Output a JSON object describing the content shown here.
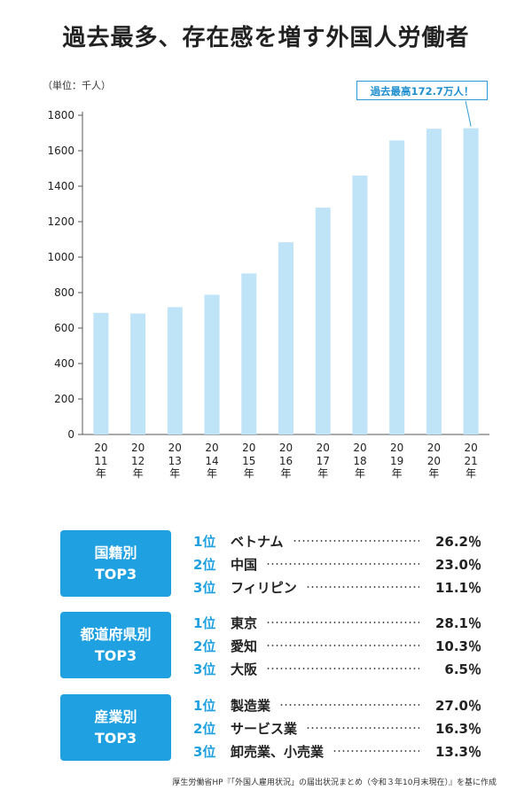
{
  "title": "過去最多、存在感を増す外国人労働者",
  "unit_label": "（単位：千人）",
  "callout": "過去最高172.7万人！",
  "colors": {
    "bar": "#bfe3f7",
    "accent": "#1fa0e0",
    "axis": "#555555"
  },
  "chart_data": {
    "type": "bar",
    "title": "過去最多、存在感を増す外国人労働者",
    "ylabel": "（単位：千人）",
    "xlabel": "",
    "categories": [
      "2011年",
      "2012年",
      "2013年",
      "2014年",
      "2015年",
      "2016年",
      "2017年",
      "2018年",
      "2019年",
      "2020年",
      "2021年"
    ],
    "values": [
      686,
      682,
      718,
      788,
      908,
      1084,
      1279,
      1460,
      1658,
      1724,
      1727
    ],
    "ylim": [
      0,
      1800
    ],
    "yticks": [
      0,
      200,
      400,
      600,
      800,
      1000,
      1200,
      1400,
      1600,
      1800
    ],
    "grid": false
  },
  "rankings": [
    {
      "title": "国籍別",
      "subtitle": "TOP3",
      "items": [
        {
          "rank": "1位",
          "name": "ベトナム",
          "value": "26.2％"
        },
        {
          "rank": "2位",
          "name": "中国",
          "value": "23.0％"
        },
        {
          "rank": "3位",
          "name": "フィリピン",
          "value": "11.1％"
        }
      ]
    },
    {
      "title": "都道府県別",
      "subtitle": "TOP3",
      "items": [
        {
          "rank": "1位",
          "name": "東京",
          "value": "28.1％"
        },
        {
          "rank": "2位",
          "name": "愛知",
          "value": "10.3％"
        },
        {
          "rank": "3位",
          "name": "大阪",
          "value": "6.5％"
        }
      ]
    },
    {
      "title": "産業別",
      "subtitle": "TOP3",
      "items": [
        {
          "rank": "1位",
          "name": "製造業",
          "value": "27.0％"
        },
        {
          "rank": "2位",
          "name": "サービス業",
          "value": "16.3％"
        },
        {
          "rank": "3位",
          "name": "卸売業、小売業",
          "value": "13.3％"
        }
      ]
    }
  ],
  "source": "厚生労働省HP『「外国人雇用状況」の届出状況まとめ（令和３年10月末現在）』を基に作成"
}
